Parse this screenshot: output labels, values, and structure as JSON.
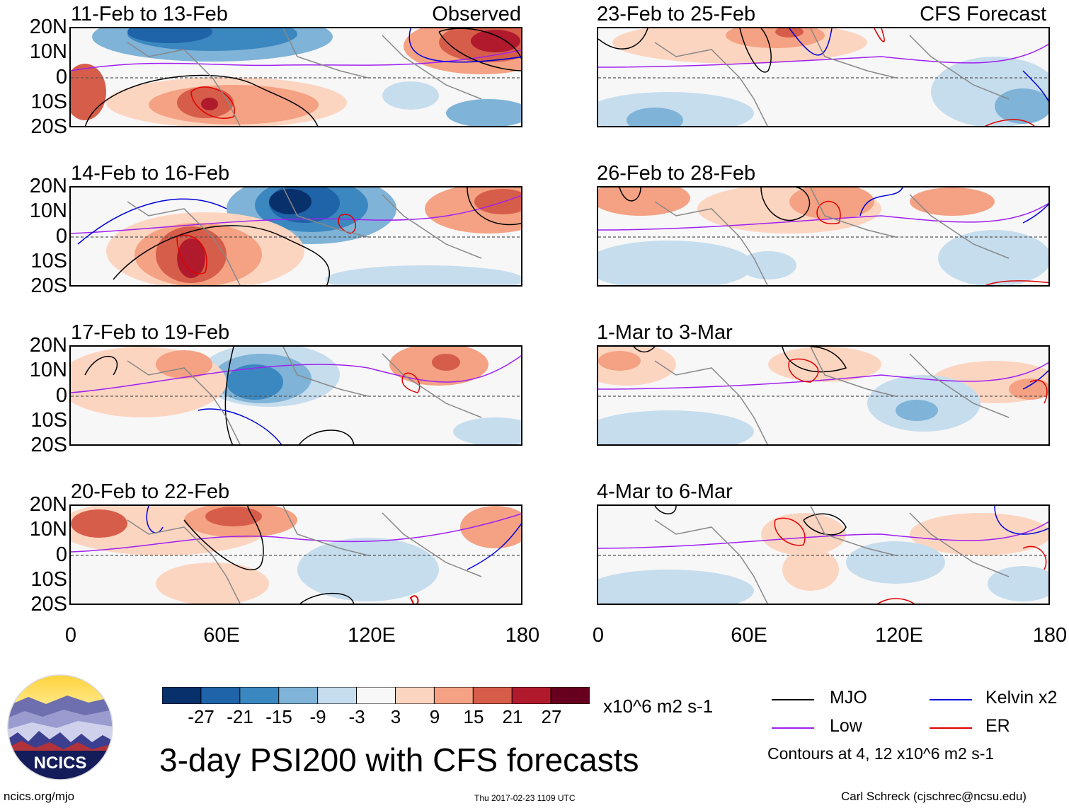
{
  "panels": [
    {
      "id": "obs-1",
      "title": "11-Feb to 13-Feb",
      "corner": "Observed"
    },
    {
      "id": "obs-2",
      "title": "14-Feb to 16-Feb",
      "corner": ""
    },
    {
      "id": "obs-3",
      "title": "17-Feb to 19-Feb",
      "corner": ""
    },
    {
      "id": "obs-4",
      "title": "20-Feb to 22-Feb",
      "corner": ""
    },
    {
      "id": "fc-1",
      "title": "23-Feb to 25-Feb",
      "corner": "CFS Forecast"
    },
    {
      "id": "fc-2",
      "title": "26-Feb to 28-Feb",
      "corner": ""
    },
    {
      "id": "fc-3",
      "title": "1-Mar to 3-Mar",
      "corner": ""
    },
    {
      "id": "fc-4",
      "title": "4-Mar to 6-Mar",
      "corner": ""
    }
  ],
  "lat_labels": [
    "20N",
    "10N",
    "0",
    "10S",
    "20S"
  ],
  "lon_labels": [
    "0",
    "60E",
    "120E",
    "180"
  ],
  "colorbar": {
    "ticks": [
      "-27",
      "-21",
      "-15",
      "-9",
      "-3",
      "3",
      "9",
      "15",
      "21",
      "27"
    ],
    "colors": [
      "#08306b",
      "#1f63a8",
      "#3b87c0",
      "#7fb3d7",
      "#c6ddee",
      "#f7f7f7",
      "#fcd5c1",
      "#f4a283",
      "#d65d4a",
      "#b01a2c",
      "#67001f"
    ],
    "units": "x10^6 m2 s-1"
  },
  "legend": {
    "mjo": {
      "label": "MJO",
      "color": "#000000"
    },
    "kelvin": {
      "label": "Kelvin x2",
      "color": "#0000dd"
    },
    "low": {
      "label": "Low",
      "color": "#a020f0"
    },
    "er": {
      "label": "ER",
      "color": "#e00000"
    },
    "note": "Contours at 4, 12 x10^6 m2 s-1"
  },
  "title": "3-day PSI200 with CFS forecasts",
  "logo_text": "NCICS",
  "footer": {
    "url": "ncics.org/mjo",
    "timestamp": "Thu 2017-02-23 1109 UTC",
    "credit": "Carl Schreck (cjschrec@ncsu.edu)"
  }
}
